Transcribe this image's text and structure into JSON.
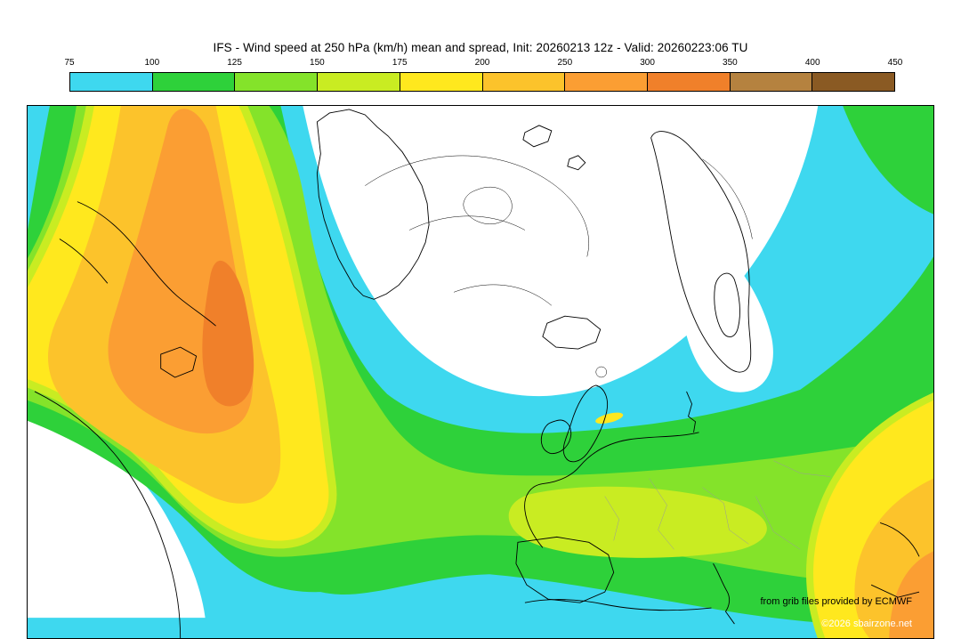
{
  "title": "IFS - Wind speed at 250 hPa (km/h) mean and spread, Init: 20260213 12z - Valid: 20260223:06 TU",
  "colorbar": {
    "tick_labels": [
      "75",
      "100",
      "125",
      "150",
      "175",
      "200",
      "250",
      "300",
      "350",
      "400",
      "450"
    ],
    "swatch_colors": [
      "#3ed8ef",
      "#2ed13a",
      "#84e32a",
      "#c9ec22",
      "#ffe81e",
      "#fcc32b",
      "#fb9e33",
      "#f0802a",
      "#b5823f",
      "#8a5a23"
    ]
  },
  "palette": {
    "cyan": "#3ed8ef",
    "green": "#2ed13a",
    "ygreen1": "#84e32a",
    "ygreen2": "#c9ec22",
    "yellow": "#ffe81e",
    "gold": "#fcc32b",
    "orange": "#fb9e33",
    "dkorange": "#f0802a",
    "white": "#ffffff",
    "coast": "#000000",
    "border_gray": "#9a9a9a"
  },
  "map": {
    "credit": "from grib files provided by ECMWF",
    "copyright": "©2026 sbairzone.net"
  },
  "chart_data": {
    "type": "heatmap",
    "variable": "Wind speed at 250 hPa mean and spread",
    "units": "km/h",
    "model": "IFS",
    "init": "20260213 12z",
    "valid": "20260223:06 TU",
    "levels": [
      75,
      100,
      125,
      150,
      175,
      200,
      250,
      300,
      350,
      400,
      450
    ],
    "legend_position": "top"
  }
}
